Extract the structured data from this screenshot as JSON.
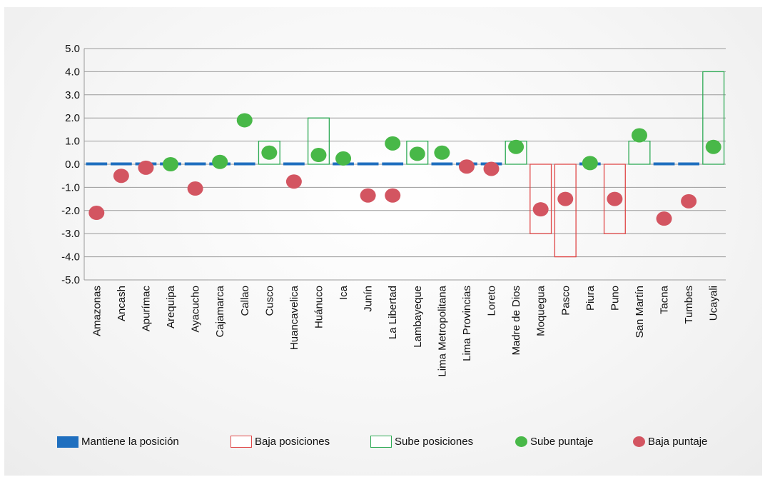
{
  "colors": {
    "maintain": "#1f6fbf",
    "drop_rank": "#e04848",
    "rise_rank": "#2eaa55",
    "rise_score": "#48b848",
    "drop_score": "#d35561",
    "grid": "#9a9a9a"
  },
  "legend": {
    "maintain": "Mantiene la posición",
    "drop_rank": "Baja posiciones",
    "rise_rank": "Sube posiciones",
    "rise_score": "Sube puntaje",
    "drop_score": "Baja puntaje"
  },
  "chart_data": {
    "type": "bar",
    "ylim": [
      -5,
      5
    ],
    "yticks": [
      "5.0",
      "4.0",
      "3.0",
      "2.0",
      "1.0",
      "0.0",
      "-1.0",
      "-2.0",
      "-3.0",
      "-4.0",
      "-5.0"
    ],
    "grid": true,
    "legend_position": "bottom",
    "categories": [
      "Amazonas",
      "Ancash",
      "Apurímac",
      "Arequipa",
      "Ayacucho",
      "Cajamarca",
      "Callao",
      "Cusco",
      "Huancavelica",
      "Huánuco",
      "Ica",
      "Junín",
      "La Libertad",
      "Lambayeque",
      "Lima Metropolitana",
      "Lima Provincias",
      "Loreto",
      "Madre de Dios",
      "Moquegua",
      "Pasco",
      "Piura",
      "Puno",
      "San Martín",
      "Tacna",
      "Tumbes",
      "Ucayali"
    ],
    "series": [
      {
        "name": "Mantiene la posición",
        "kind": "maintain",
        "values": [
          1,
          1,
          1,
          1,
          1,
          1,
          1,
          0,
          1,
          0,
          1,
          1,
          1,
          0,
          1,
          1,
          1,
          0,
          0,
          0,
          1,
          0,
          0,
          1,
          1,
          0
        ]
      },
      {
        "name": "Baja posiciones",
        "kind": "rank",
        "values": [
          0,
          0,
          0,
          0,
          0,
          0,
          0,
          0,
          0,
          0,
          0,
          0,
          0,
          0,
          0,
          0,
          0,
          0,
          -3,
          -4,
          0,
          -3,
          0,
          0,
          0,
          0
        ]
      },
      {
        "name": "Sube posiciones",
        "kind": "rank",
        "values": [
          0,
          0,
          0,
          0,
          0,
          0,
          0,
          1,
          0,
          2,
          0,
          0,
          0,
          1,
          0,
          0,
          0,
          1,
          0,
          0,
          0,
          0,
          1,
          0,
          0,
          4
        ]
      },
      {
        "name": "Sube puntaje",
        "kind": "dot",
        "values": [
          null,
          null,
          null,
          0.0,
          null,
          0.1,
          1.9,
          0.5,
          null,
          0.4,
          0.25,
          null,
          0.9,
          0.45,
          0.5,
          null,
          null,
          0.75,
          null,
          null,
          0.05,
          null,
          1.25,
          null,
          null,
          0.75
        ]
      },
      {
        "name": "Baja puntaje",
        "kind": "dot",
        "values": [
          -2.1,
          -0.5,
          -0.15,
          null,
          -1.05,
          null,
          null,
          null,
          -0.75,
          null,
          null,
          -1.35,
          -1.35,
          null,
          null,
          -0.1,
          -0.2,
          null,
          -1.95,
          -1.5,
          null,
          -1.5,
          null,
          -2.35,
          -1.6,
          null
        ]
      }
    ]
  }
}
